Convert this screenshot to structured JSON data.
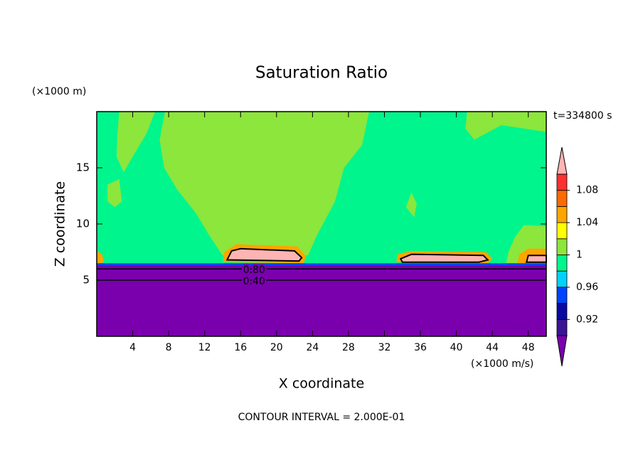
{
  "chart_data": {
    "type": "contour",
    "title": "Saturation Ratio",
    "x_label": "X coordinate",
    "y_label": "Z coordinate",
    "x_unit": "(×1000 m/s)",
    "y_unit": "(×1000 m)",
    "time_label": "t=334800 s",
    "footer": "CONTOUR INTERVAL = 2.000E-01",
    "xlim": [
      0,
      50
    ],
    "ylim": [
      0,
      20
    ],
    "xticks": [
      4,
      8,
      12,
      16,
      20,
      24,
      28,
      32,
      36,
      40,
      44,
      48
    ],
    "yticks": [
      5,
      10,
      15
    ],
    "colorbar": {
      "bounds": [
        0.9,
        0.92,
        0.94,
        0.96,
        0.98,
        1.0,
        1.02,
        1.04,
        1.06,
        1.08,
        1.1
      ],
      "colors": [
        "#7a00ae",
        "#3c1496",
        "#0a0aa0",
        "#0044ff",
        "#00d2ff",
        "#00f58c",
        "#8ce63c",
        "#ffff00",
        "#ffa500",
        "#ff6a00",
        "#ff3030",
        "#ffb4b4"
      ],
      "ticks": [
        0.92,
        0.96,
        1,
        1.04,
        1.08
      ]
    },
    "regions": [
      {
        "value": 0.99,
        "x": [
          0,
          50,
          50,
          0
        ],
        "z": [
          0,
          0,
          20,
          20
        ]
      },
      {
        "value": 1.01,
        "x": [
          7.6,
          30.3,
          29.5,
          27.5,
          26.5,
          24.5,
          23.5,
          14,
          12.5,
          11,
          9,
          7.5,
          7
        ],
        "z": [
          20,
          20,
          17,
          15,
          12,
          9,
          7.2,
          7.2,
          9,
          11,
          13,
          15,
          17.5
        ]
      },
      {
        "value": 1.01,
        "x": [
          2.5,
          6.5,
          5.5,
          4,
          3,
          2.2,
          2.3
        ],
        "z": [
          20,
          20,
          18,
          16,
          14.6,
          16,
          18
        ]
      },
      {
        "value": 1.01,
        "x": [
          1.2,
          2.5,
          2.8,
          2,
          1.2
        ],
        "z": [
          13.5,
          14,
          12,
          11.5,
          12
        ]
      },
      {
        "value": 1.01,
        "x": [
          41.2,
          50,
          50,
          45,
          42,
          41
        ],
        "z": [
          20,
          20,
          18.2,
          18.8,
          17.5,
          18.5
        ]
      },
      {
        "value": 1.01,
        "x": [
          45.5,
          50,
          50,
          47.5,
          46.5,
          45.8
        ],
        "z": [
          6.4,
          6.4,
          9.8,
          9.9,
          8.8,
          7.5
        ]
      },
      {
        "value": 1.01,
        "x": [
          34.4,
          35,
          35.6,
          35.3
        ],
        "z": [
          11.5,
          12.8,
          11.8,
          10.6
        ]
      },
      {
        "value": 1.05,
        "x": [
          14,
          14.2,
          15.5,
          22.3,
          23.3,
          23
        ],
        "z": [
          6.6,
          7.5,
          8.2,
          8.0,
          7.1,
          6.5
        ]
      },
      {
        "value": 1.12,
        "x": [
          14.5,
          15,
          16,
          22,
          22.8,
          22.5
        ],
        "z": [
          6.8,
          7.6,
          7.8,
          7.6,
          7,
          6.7
        ]
      },
      {
        "value": 1.05,
        "x": [
          33.3,
          33.5,
          35,
          43.3,
          44,
          43.5
        ],
        "z": [
          6.6,
          7.3,
          7.6,
          7.5,
          6.9,
          6.5
        ]
      },
      {
        "value": 1.12,
        "x": [
          33.8,
          35,
          43,
          43.5,
          42.5,
          34
        ],
        "z": [
          6.9,
          7.3,
          7.2,
          6.8,
          6.6,
          6.6
        ]
      },
      {
        "value": 1.05,
        "x": [
          46.8,
          47,
          48,
          50,
          50
        ],
        "z": [
          6.5,
          7.3,
          7.8,
          7.8,
          6.5
        ]
      },
      {
        "value": 1.12,
        "x": [
          47.8,
          48,
          50,
          50
        ],
        "z": [
          6.6,
          7.2,
          7.2,
          6.6
        ]
      },
      {
        "value": 1.05,
        "x": [
          0,
          0,
          0.6,
          0.8
        ],
        "z": [
          6.4,
          7.6,
          7.3,
          6.6
        ]
      },
      {
        "value": 0.95,
        "x": [
          0,
          50,
          50,
          0
        ],
        "z": [
          6.2,
          6.2,
          6.5,
          6.5
        ]
      },
      {
        "value": 0.5,
        "x": [
          0,
          50,
          50,
          0
        ],
        "z": [
          0,
          0,
          6.3,
          6.3
        ]
      }
    ],
    "contour_lines": [
      {
        "level": {
          "value": 0.8,
          "label": "0.80"
        },
        "z": 6.0
      },
      {
        "level": {
          "value": 0.4,
          "label": "0.40"
        },
        "z": 5.0
      }
    ]
  }
}
